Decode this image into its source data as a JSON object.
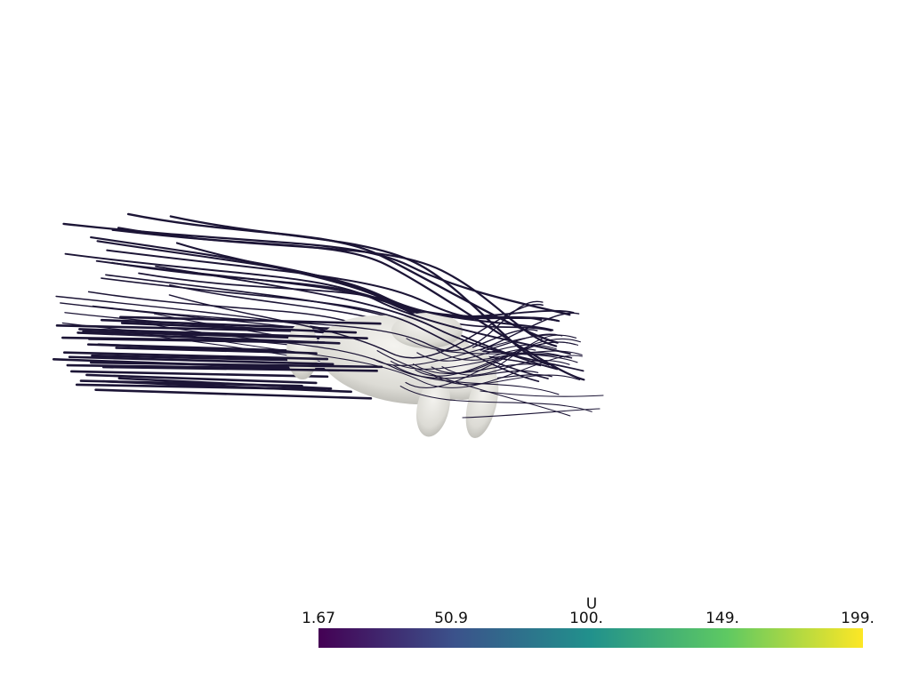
{
  "scalar_bar": {
    "title": "U",
    "ticks": [
      "1.67",
      "50.9",
      "100.",
      "149.",
      "199."
    ],
    "colormap": [
      "#440154",
      "#3b528b",
      "#21918c",
      "#5ec962",
      "#fde725"
    ]
  },
  "scene": {
    "background": "#ffffff",
    "streamline_color": "#1c1536",
    "body_color": "#e4e3de"
  }
}
